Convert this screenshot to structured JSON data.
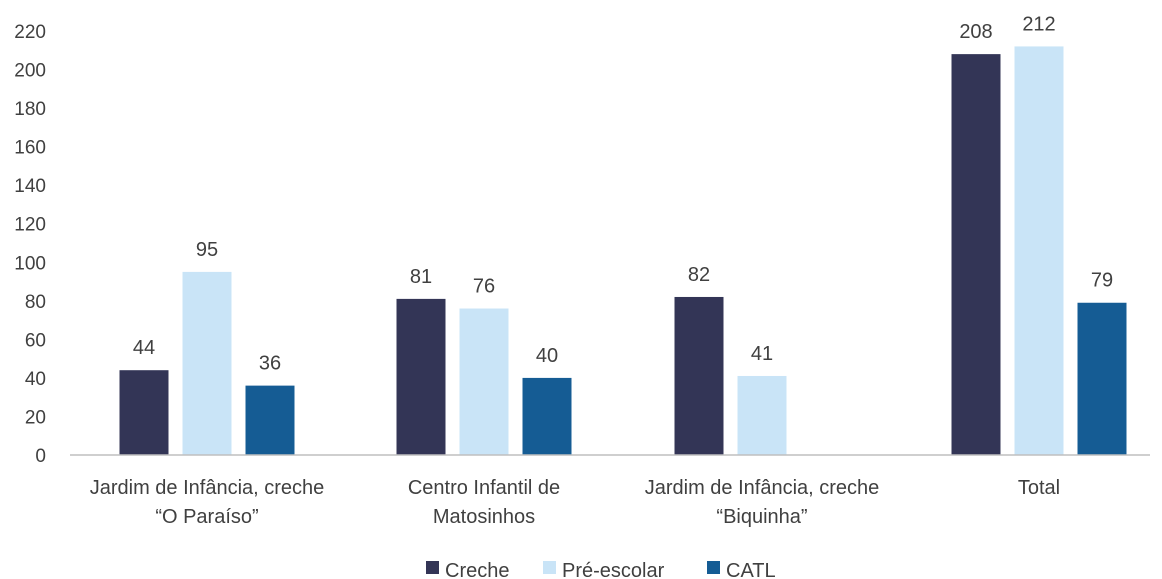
{
  "chart_data": {
    "type": "bar",
    "title": "",
    "xlabel": "",
    "ylabel": "",
    "ylim": [
      0,
      220
    ],
    "yticks": [
      0,
      20,
      40,
      60,
      80,
      100,
      120,
      140,
      160,
      180,
      200,
      220
    ],
    "grid": false,
    "legend_position": "bottom",
    "categories": [
      [
        "Jardim de Infância, creche",
        "“O Paraíso”"
      ],
      [
        "Centro Infantil de",
        "Matosinhos"
      ],
      [
        "Jardim de Infância, creche",
        "“Biquinha”"
      ],
      [
        "Total"
      ]
    ],
    "series": [
      {
        "name": "Creche",
        "color": "#333556",
        "values": [
          44,
          81,
          82,
          208
        ]
      },
      {
        "name": "Pré-escolar",
        "color": "#c9e4f7",
        "values": [
          95,
          76,
          41,
          212
        ]
      },
      {
        "name": "CATL",
        "color": "#155c94",
        "values": [
          36,
          40,
          null,
          79
        ]
      }
    ]
  }
}
